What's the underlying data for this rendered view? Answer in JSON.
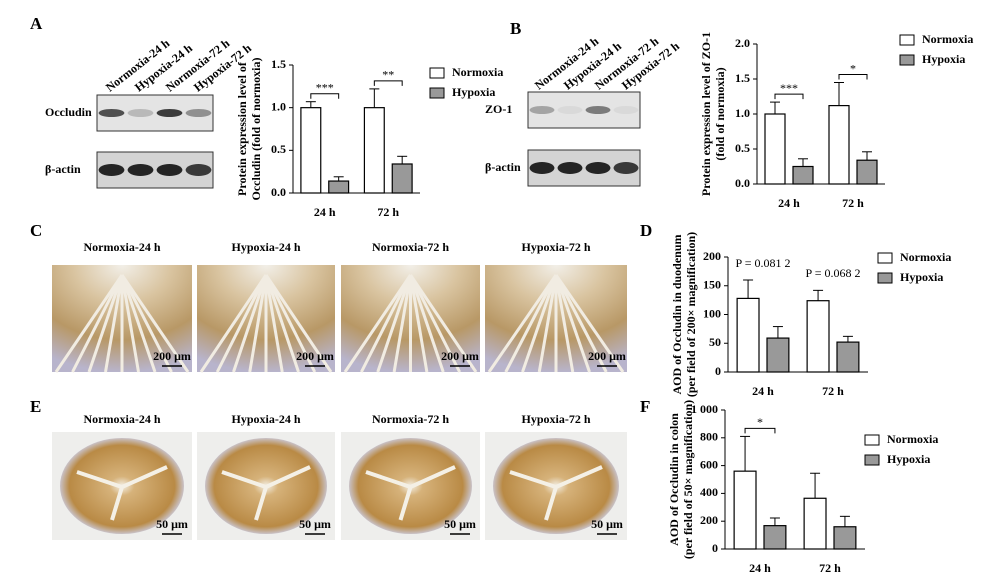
{
  "panel_labels": [
    "A",
    "B",
    "C",
    "D",
    "E",
    "F"
  ],
  "blots": [
    {
      "lanes": [
        "Normoxia-24 h",
        "Hypoxia-24 h",
        "Normoxia-72 h",
        "Hypoxia-72 h"
      ],
      "rows": [
        "Occludin",
        "β-actin"
      ]
    },
    {
      "lanes": [
        "Normoxia-24 h",
        "Hypoxia-24 h",
        "Normoxia-72 h",
        "Hypoxia-72 h"
      ],
      "rows": [
        "ZO-1",
        "β-actin"
      ]
    }
  ],
  "histology": [
    {
      "labels": [
        "Normoxia-24 h",
        "Hypoxia-24 h",
        "Normoxia-72 h",
        "Hypoxia-72 h"
      ],
      "scale_bar": "200 μm"
    },
    {
      "labels": [
        "Normoxia-24 h",
        "Hypoxia-24 h",
        "Normoxia-72 h",
        "Hypoxia-72 h"
      ],
      "scale_bar": "50 μm"
    }
  ],
  "chart_data": [
    {
      "type": "bar",
      "ylabel": [
        "Protein expression level of",
        "Occludin (fold of normoxia)"
      ],
      "categories": [
        "24 h",
        "72 h"
      ],
      "series": [
        {
          "name": "Normoxia",
          "color": "#ffffff",
          "values": [
            1.0,
            1.0
          ],
          "errors": [
            0.07,
            0.22
          ]
        },
        {
          "name": "Hypoxia",
          "color": "#999999",
          "values": [
            0.14,
            0.34
          ],
          "errors": [
            0.05,
            0.09
          ]
        }
      ],
      "significance": [
        "***",
        "**"
      ],
      "significance_brackets": true,
      "ylim": [
        0,
        1.5
      ],
      "yticks": [
        {
          "value": 0,
          "label": "0.0"
        },
        {
          "value": 0.5,
          "label": "0.5"
        },
        {
          "value": 1,
          "label": "1.0"
        },
        {
          "value": 1.5,
          "label": "1.5"
        }
      ]
    },
    {
      "type": "bar",
      "ylabel": [
        "Protein expression level of ZO-1",
        "(fold of normoxia)"
      ],
      "categories": [
        "24 h",
        "72 h"
      ],
      "series": [
        {
          "name": "Normoxia",
          "color": "#ffffff",
          "values": [
            1.0,
            1.12
          ],
          "errors": [
            0.17,
            0.33
          ]
        },
        {
          "name": "Hypoxia",
          "color": "#999999",
          "values": [
            0.25,
            0.34
          ],
          "errors": [
            0.11,
            0.12
          ]
        }
      ],
      "significance": [
        "***",
        "*"
      ],
      "significance_brackets": true,
      "ylim": [
        0,
        2
      ],
      "yticks": [
        {
          "value": 0,
          "label": "0.0"
        },
        {
          "value": 0.5,
          "label": "0.5"
        },
        {
          "value": 1,
          "label": "1.0"
        },
        {
          "value": 1.5,
          "label": "1.5"
        },
        {
          "value": 2,
          "label": "2.0"
        }
      ]
    },
    {
      "type": "bar",
      "ylabel": [
        "AOD of Occludin in duodenum",
        "(per field of 200× magnification)"
      ],
      "categories": [
        "24 h",
        "72 h"
      ],
      "series": [
        {
          "name": "Normoxia",
          "color": "#ffffff",
          "values": [
            128,
            124
          ],
          "errors": [
            32,
            18
          ]
        },
        {
          "name": "Hypoxia",
          "color": "#999999",
          "values": [
            59,
            52
          ],
          "errors": [
            20,
            10
          ]
        }
      ],
      "significance": [
        "P = 0.081 2",
        "P = 0.068 2"
      ],
      "significance_brackets": false,
      "ylim": [
        0,
        200
      ],
      "yticks": [
        0,
        50,
        100,
        150,
        200
      ]
    },
    {
      "type": "bar",
      "ylabel": [
        "AOD of Occludin in colon",
        "(per field of 50× magnification)"
      ],
      "categories": [
        "24 h",
        "72 h"
      ],
      "series": [
        {
          "name": "Normoxia",
          "color": "#ffffff",
          "values": [
            560,
            365
          ],
          "errors": [
            250,
            180
          ]
        },
        {
          "name": "Hypoxia",
          "color": "#999999",
          "values": [
            168,
            160
          ],
          "errors": [
            55,
            75
          ]
        }
      ],
      "significance": [
        "*",
        null
      ],
      "significance_brackets": true,
      "ylim": [
        0,
        1000
      ],
      "yticks": [
        0,
        200,
        400,
        600,
        800,
        {
          "value": 1000,
          "label": "1 000"
        }
      ]
    }
  ]
}
